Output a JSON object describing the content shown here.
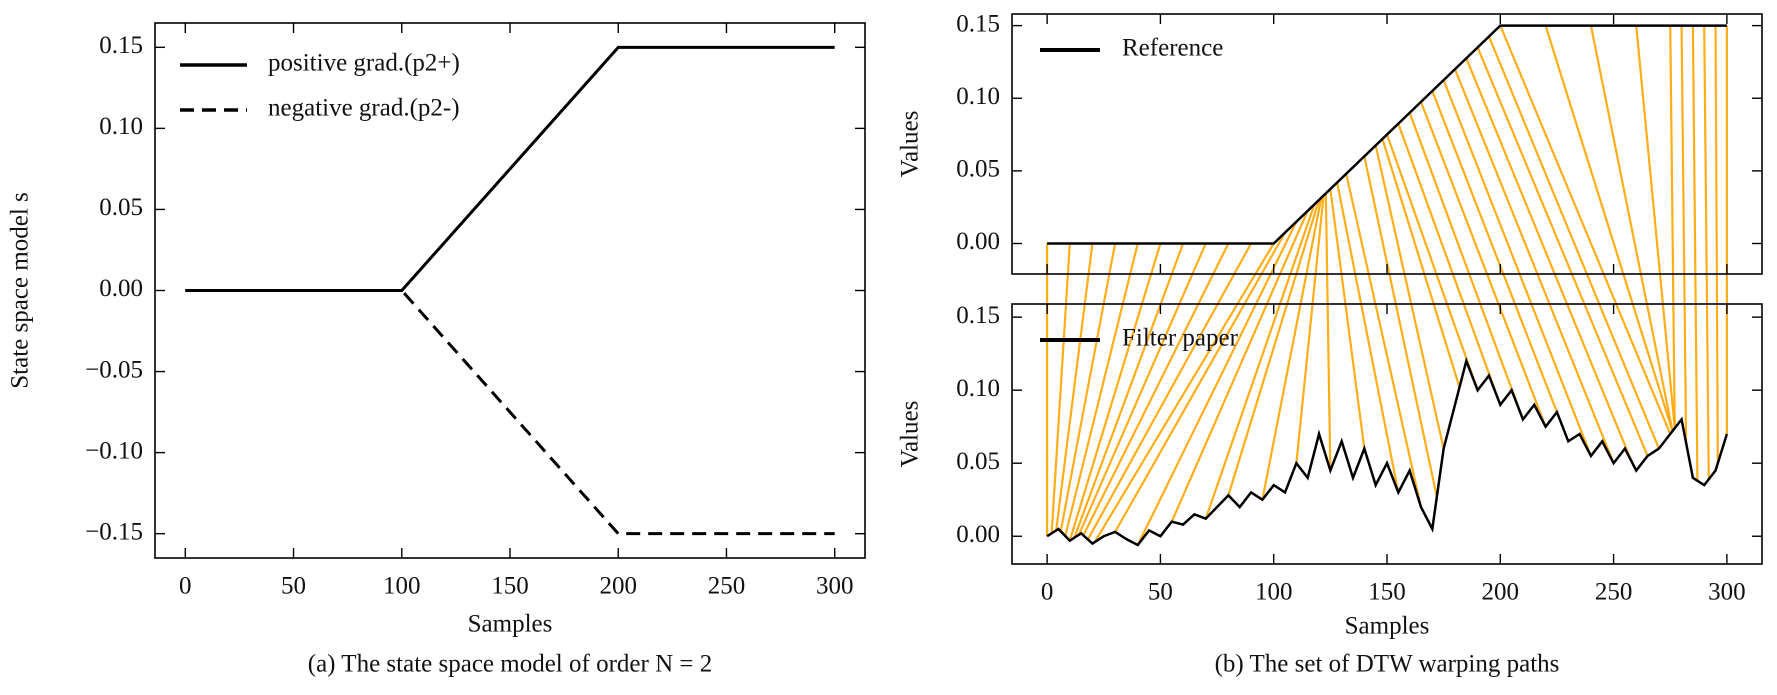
{
  "chart_data": [
    {
      "type": "line",
      "caption": "(a) The state space model of order N = 2",
      "xlabel": "Samples",
      "ylabel": "State space model s",
      "x": [
        0,
        100,
        200,
        300
      ],
      "series": [
        {
          "name": "positive grad.(p2+)",
          "color": "#000000",
          "linestyle": "solid",
          "values": [
            0,
            0,
            0.15,
            0.15
          ]
        },
        {
          "name": "negative grad.(p2-)",
          "color": "#000000",
          "linestyle": "dashed",
          "values": [
            0,
            0,
            -0.15,
            -0.15
          ]
        }
      ],
      "xlim": [
        -14,
        314
      ],
      "ylim": [
        -0.165,
        0.165
      ],
      "xticks": [
        0,
        50,
        100,
        150,
        200,
        250,
        300
      ],
      "yticks": [
        {
          "value": -0.15,
          "label": "−0.15"
        },
        {
          "value": -0.1,
          "label": "−0.10"
        },
        {
          "value": -0.05,
          "label": "−0.05"
        },
        {
          "value": 0,
          "label": "0.00"
        },
        0.05,
        {
          "value": 0.1,
          "label": "0.10"
        },
        0.15
      ],
      "legend": "upper left"
    },
    {
      "type": "dtw",
      "caption": "(b) The set of DTW warping paths",
      "xlabel": "Samples",
      "xlim": [
        -15.5,
        315.5
      ],
      "xticks": [
        0,
        50,
        100,
        150,
        200,
        250,
        300
      ],
      "panels": [
        {
          "ylabel": "Values",
          "ylim": [
            -0.021,
            0.158
          ],
          "yticks": [
            {
              "value": 0,
              "label": "0.00"
            },
            0.05,
            {
              "value": 0.1,
              "label": "0.10"
            },
            0.15
          ],
          "legend": "upper left",
          "series": [
            {
              "name": "Reference",
              "color": "#000000",
              "x": [
                0,
                100,
                200,
                300
              ],
              "values": [
                0,
                0,
                0.15,
                0.15
              ]
            }
          ]
        },
        {
          "ylabel": "Values",
          "ylim": [
            -0.019,
            0.159
          ],
          "yticks": [
            {
              "value": 0,
              "label": "0.00"
            },
            0.05,
            {
              "value": 0.1,
              "label": "0.10"
            },
            0.15
          ],
          "legend": "upper left",
          "series": [
            {
              "name": "Filter paper",
              "color": "#000000",
              "x": [
                0,
                5,
                10,
                15,
                20,
                25,
                30,
                35,
                40,
                45,
                50,
                55,
                60,
                65,
                70,
                75,
                80,
                85,
                90,
                95,
                100,
                105,
                110,
                115,
                120,
                125,
                130,
                135,
                140,
                145,
                150,
                155,
                160,
                165,
                170,
                175,
                180,
                185,
                190,
                195,
                200,
                205,
                210,
                215,
                220,
                225,
                230,
                235,
                240,
                245,
                250,
                255,
                260,
                265,
                270,
                275,
                280,
                285,
                290,
                295,
                300
              ],
              "values": [
                0,
                0.005,
                -0.003,
                0.002,
                -0.005,
                0,
                0.003,
                -0.002,
                -0.006,
                0.004,
                0,
                0.01,
                0.008,
                0.015,
                0.012,
                0.02,
                0.028,
                0.02,
                0.03,
                0.025,
                0.035,
                0.03,
                0.05,
                0.04,
                0.07,
                0.045,
                0.065,
                0.04,
                0.06,
                0.035,
                0.05,
                0.03,
                0.045,
                0.02,
                0.005,
                0.06,
                0.09,
                0.12,
                0.1,
                0.11,
                0.09,
                0.1,
                0.08,
                0.09,
                0.075,
                0.085,
                0.065,
                0.07,
                0.055,
                0.065,
                0.05,
                0.06,
                0.045,
                0.055,
                0.06,
                0.07,
                0.08,
                0.04,
                0.035,
                0.045,
                0.07
              ]
            }
          ]
        }
      ],
      "warping_paths": {
        "color": "#ffa500",
        "pairs": [
          [
            0,
            0
          ],
          [
            10,
            2
          ],
          [
            20,
            4
          ],
          [
            30,
            6
          ],
          [
            40,
            8
          ],
          [
            50,
            10
          ],
          [
            60,
            12
          ],
          [
            70,
            14
          ],
          [
            80,
            16
          ],
          [
            90,
            18
          ],
          [
            100,
            21
          ],
          [
            105,
            30
          ],
          [
            110,
            40
          ],
          [
            115,
            55
          ],
          [
            118,
            70
          ],
          [
            120,
            80
          ],
          [
            121,
            95
          ],
          [
            122,
            110
          ],
          [
            123,
            125
          ],
          [
            125,
            140
          ],
          [
            128,
            155
          ],
          [
            132,
            165
          ],
          [
            140,
            172
          ],
          [
            145,
            175
          ],
          [
            148,
            182
          ],
          [
            150,
            190
          ],
          [
            155,
            200
          ],
          [
            160,
            210
          ],
          [
            165,
            220
          ],
          [
            170,
            230
          ],
          [
            175,
            240
          ],
          [
            180,
            250
          ],
          [
            185,
            258
          ],
          [
            190,
            265
          ],
          [
            195,
            270
          ],
          [
            200,
            275
          ],
          [
            220,
            276
          ],
          [
            240,
            276
          ],
          [
            260,
            277
          ],
          [
            275,
            277
          ],
          [
            280,
            282
          ],
          [
            285,
            287
          ],
          [
            290,
            292
          ],
          [
            295,
            296
          ],
          [
            300,
            300
          ]
        ]
      }
    }
  ]
}
